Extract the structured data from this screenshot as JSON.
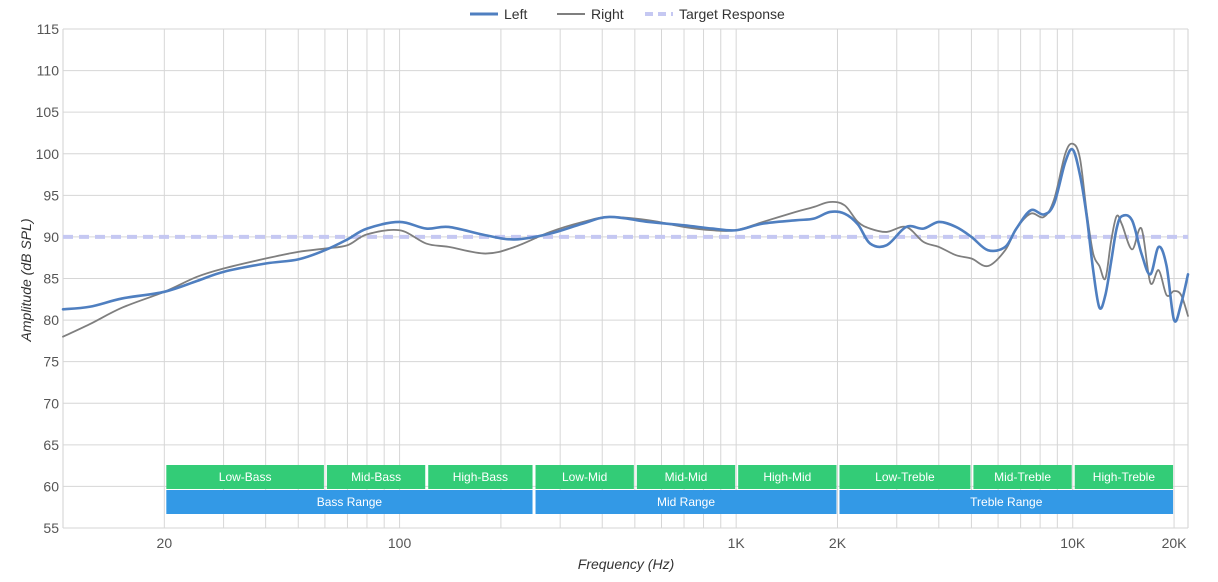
{
  "chart_data": {
    "type": "line",
    "xlabel": "Frequency (Hz)",
    "ylabel": "Amplitude (dB SPL)",
    "xscale": "log",
    "xlim": [
      10,
      22000
    ],
    "ylim": [
      55,
      115
    ],
    "grid": true,
    "legend_position": "top-center",
    "x_ticks": [
      {
        "value": 20,
        "label": "20"
      },
      {
        "value": 100,
        "label": "100"
      },
      {
        "value": 1000,
        "label": "1K"
      },
      {
        "value": 2000,
        "label": "2K"
      },
      {
        "value": 10000,
        "label": "10K"
      },
      {
        "value": 20000,
        "label": "20K"
      }
    ],
    "y_ticks": [
      55,
      60,
      65,
      70,
      75,
      80,
      85,
      90,
      95,
      100,
      105,
      110,
      115
    ],
    "series": [
      {
        "name": "Left",
        "color": "#4f7fc0",
        "style": "solid",
        "points": [
          [
            10,
            81.3
          ],
          [
            12,
            81.6
          ],
          [
            15,
            82.6
          ],
          [
            20,
            83.4
          ],
          [
            25,
            84.7
          ],
          [
            30,
            85.8
          ],
          [
            40,
            86.8
          ],
          [
            50,
            87.3
          ],
          [
            60,
            88.4
          ],
          [
            70,
            89.7
          ],
          [
            80,
            91.0
          ],
          [
            100,
            91.8
          ],
          [
            120,
            91.0
          ],
          [
            140,
            91.2
          ],
          [
            180,
            90.2
          ],
          [
            220,
            89.7
          ],
          [
            280,
            90.4
          ],
          [
            350,
            91.6
          ],
          [
            420,
            92.4
          ],
          [
            550,
            91.8
          ],
          [
            700,
            91.4
          ],
          [
            850,
            91.0
          ],
          [
            1000,
            90.8
          ],
          [
            1200,
            91.6
          ],
          [
            1500,
            92.0
          ],
          [
            1700,
            92.2
          ],
          [
            1900,
            93.0
          ],
          [
            2100,
            92.8
          ],
          [
            2300,
            91.5
          ],
          [
            2500,
            89.2
          ],
          [
            2800,
            89.0
          ],
          [
            3200,
            91.2
          ],
          [
            3600,
            91.0
          ],
          [
            4000,
            91.8
          ],
          [
            4500,
            91.2
          ],
          [
            5000,
            90.0
          ],
          [
            5600,
            88.4
          ],
          [
            6300,
            88.8
          ],
          [
            6800,
            91.0
          ],
          [
            7500,
            93.2
          ],
          [
            8200,
            92.7
          ],
          [
            8800,
            94.0
          ],
          [
            9500,
            99.0
          ],
          [
            10000,
            100.5
          ],
          [
            10500,
            97.5
          ],
          [
            11000,
            92.5
          ],
          [
            11500,
            86.0
          ],
          [
            12000,
            81.5
          ],
          [
            12500,
            83.0
          ],
          [
            13000,
            87.0
          ],
          [
            13500,
            91.0
          ],
          [
            14000,
            92.5
          ],
          [
            15000,
            92.0
          ],
          [
            16000,
            88.0
          ],
          [
            17000,
            85.5
          ],
          [
            18000,
            88.8
          ],
          [
            19000,
            86.5
          ],
          [
            20000,
            80.0
          ],
          [
            21000,
            82.0
          ],
          [
            22000,
            85.5
          ]
        ]
      },
      {
        "name": "Right",
        "color": "#7f7f7f",
        "style": "solid",
        "points": [
          [
            10,
            78.0
          ],
          [
            12,
            79.5
          ],
          [
            15,
            81.5
          ],
          [
            20,
            83.4
          ],
          [
            25,
            85.2
          ],
          [
            30,
            86.2
          ],
          [
            40,
            87.4
          ],
          [
            50,
            88.2
          ],
          [
            60,
            88.6
          ],
          [
            70,
            89.0
          ],
          [
            80,
            90.3
          ],
          [
            100,
            90.8
          ],
          [
            120,
            89.2
          ],
          [
            140,
            88.8
          ],
          [
            180,
            88.0
          ],
          [
            220,
            88.8
          ],
          [
            280,
            90.6
          ],
          [
            350,
            91.8
          ],
          [
            420,
            92.4
          ],
          [
            550,
            92.0
          ],
          [
            700,
            91.2
          ],
          [
            850,
            90.8
          ],
          [
            1000,
            90.8
          ],
          [
            1200,
            91.8
          ],
          [
            1500,
            93.0
          ],
          [
            1700,
            93.6
          ],
          [
            1900,
            94.2
          ],
          [
            2100,
            93.8
          ],
          [
            2300,
            91.8
          ],
          [
            2500,
            91.0
          ],
          [
            2800,
            90.6
          ],
          [
            3200,
            91.2
          ],
          [
            3600,
            89.4
          ],
          [
            4000,
            88.8
          ],
          [
            4500,
            87.8
          ],
          [
            5000,
            87.4
          ],
          [
            5600,
            86.5
          ],
          [
            6300,
            88.4
          ],
          [
            6800,
            91.0
          ],
          [
            7500,
            92.8
          ],
          [
            8200,
            92.4
          ],
          [
            8800,
            94.5
          ],
          [
            9500,
            100.0
          ],
          [
            10000,
            101.2
          ],
          [
            10500,
            99.5
          ],
          [
            11000,
            93.0
          ],
          [
            11500,
            88.0
          ],
          [
            12000,
            86.5
          ],
          [
            12500,
            85.0
          ],
          [
            13000,
            89.5
          ],
          [
            13500,
            92.5
          ],
          [
            14000,
            91.5
          ],
          [
            15000,
            88.5
          ],
          [
            16000,
            91.0
          ],
          [
            17000,
            84.5
          ],
          [
            18000,
            86.0
          ],
          [
            19000,
            83.0
          ],
          [
            20000,
            83.5
          ],
          [
            21000,
            83.0
          ],
          [
            22000,
            80.5
          ]
        ]
      },
      {
        "name": "Target Response",
        "color": "#c5c8f2",
        "style": "dashed",
        "points": [
          [
            10,
            90
          ],
          [
            22000,
            90
          ]
        ]
      }
    ],
    "bands": [
      {
        "label": "Low-Bass",
        "from": 20,
        "to": 60,
        "row": 1,
        "color": "#33cc77"
      },
      {
        "label": "Mid-Bass",
        "from": 60,
        "to": 120,
        "row": 1,
        "color": "#33cc77"
      },
      {
        "label": "High-Bass",
        "from": 120,
        "to": 250,
        "row": 1,
        "color": "#33cc77"
      },
      {
        "label": "Low-Mid",
        "from": 250,
        "to": 500,
        "row": 1,
        "color": "#33cc77"
      },
      {
        "label": "Mid-Mid",
        "from": 500,
        "to": 1000,
        "row": 1,
        "color": "#33cc77"
      },
      {
        "label": "High-Mid",
        "from": 1000,
        "to": 2000,
        "row": 1,
        "color": "#33cc77"
      },
      {
        "label": "Low-Treble",
        "from": 2000,
        "to": 5000,
        "row": 1,
        "color": "#33cc77"
      },
      {
        "label": "Mid-Treble",
        "from": 5000,
        "to": 10000,
        "row": 1,
        "color": "#33cc77"
      },
      {
        "label": "High-Treble",
        "from": 10000,
        "to": 20000,
        "row": 1,
        "color": "#33cc77"
      },
      {
        "label": "Bass Range",
        "from": 20,
        "to": 250,
        "row": 2,
        "color": "#3399e6"
      },
      {
        "label": "Mid Range",
        "from": 250,
        "to": 2000,
        "row": 2,
        "color": "#3399e6"
      },
      {
        "label": "Treble Range",
        "from": 2000,
        "to": 20000,
        "row": 2,
        "color": "#3399e6"
      }
    ]
  }
}
